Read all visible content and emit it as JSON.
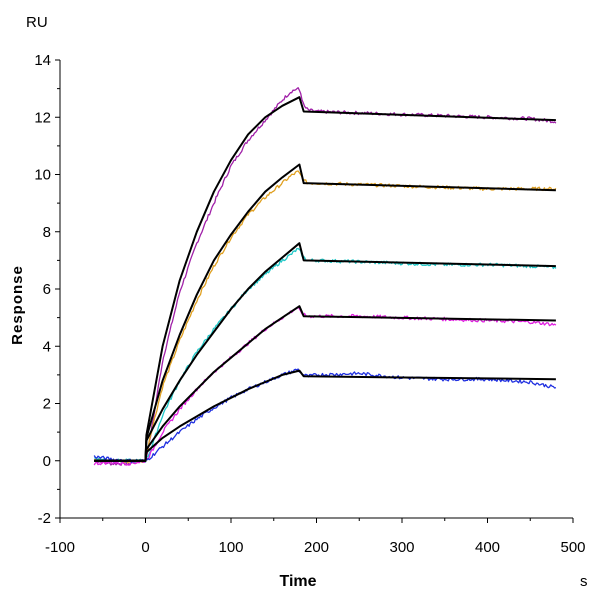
{
  "chart_data": {
    "type": "line",
    "title": "",
    "xlabel": "Time",
    "xunit": "s",
    "ylabel": "Response",
    "yunit": "RU",
    "xlim": [
      -100,
      500
    ],
    "ylim": [
      -2,
      14
    ],
    "xticks": [
      -100,
      0,
      100,
      200,
      300,
      400,
      500
    ],
    "yticks": [
      -2,
      0,
      2,
      4,
      6,
      8,
      10,
      12,
      14
    ],
    "grid": false,
    "legend": "none",
    "series": [
      {
        "role": "data",
        "color": "#a020a8",
        "x": [
          -60,
          -40,
          -20,
          0,
          5,
          20,
          40,
          60,
          80,
          100,
          120,
          140,
          160,
          170,
          178,
          181,
          185,
          190,
          200,
          250,
          300,
          350,
          400,
          450,
          480
        ],
        "y": [
          0,
          -0.1,
          -0.1,
          0,
          0.7,
          3.5,
          5.9,
          7.6,
          9.0,
          10.3,
          11.2,
          11.9,
          12.6,
          12.9,
          13.0,
          12.9,
          12.4,
          12.25,
          12.2,
          12.15,
          12.1,
          12.05,
          12.0,
          11.95,
          11.85
        ]
      },
      {
        "role": "data",
        "color": "#e0a020",
        "x": [
          -60,
          -40,
          -20,
          0,
          5,
          20,
          40,
          60,
          80,
          100,
          120,
          140,
          160,
          170,
          178,
          181,
          185,
          190,
          200,
          250,
          300,
          350,
          400,
          450,
          480
        ],
        "y": [
          0.05,
          0,
          -0.05,
          0,
          0.8,
          2.6,
          4.2,
          5.6,
          6.8,
          7.8,
          8.6,
          9.2,
          9.7,
          9.95,
          10.1,
          10.0,
          9.8,
          9.7,
          9.7,
          9.65,
          9.6,
          9.55,
          9.5,
          9.5,
          9.5
        ]
      },
      {
        "role": "data",
        "color": "#20c8c8",
        "x": [
          -60,
          -40,
          -20,
          0,
          5,
          20,
          40,
          60,
          80,
          100,
          120,
          140,
          160,
          170,
          178,
          181,
          185,
          190,
          200,
          250,
          300,
          350,
          400,
          450,
          480
        ],
        "y": [
          0.1,
          0,
          0,
          0,
          0.3,
          1.6,
          2.8,
          3.8,
          4.6,
          5.3,
          6.0,
          6.5,
          7.0,
          7.2,
          7.4,
          7.3,
          7.1,
          7.0,
          7.0,
          6.95,
          6.9,
          6.85,
          6.85,
          6.8,
          6.75
        ]
      },
      {
        "role": "data",
        "color": "#e020e0",
        "x": [
          -60,
          -40,
          -20,
          0,
          5,
          20,
          40,
          60,
          80,
          100,
          120,
          140,
          160,
          170,
          178,
          181,
          185,
          190,
          200,
          250,
          300,
          350,
          400,
          450,
          480
        ],
        "y": [
          -0.1,
          -0.05,
          -0.1,
          0,
          0.2,
          1.0,
          1.8,
          2.5,
          3.1,
          3.6,
          4.1,
          4.6,
          5.0,
          5.2,
          5.35,
          5.2,
          5.1,
          5.05,
          5.05,
          5.05,
          5.0,
          4.95,
          4.9,
          4.85,
          4.75
        ]
      },
      {
        "role": "data",
        "color": "#2030e0",
        "x": [
          -60,
          -40,
          -20,
          0,
          5,
          20,
          40,
          60,
          80,
          100,
          120,
          140,
          160,
          170,
          178,
          181,
          185,
          190,
          200,
          250,
          300,
          350,
          400,
          450,
          480
        ],
        "y": [
          0.15,
          0.05,
          0,
          0,
          0.1,
          0.5,
          1.0,
          1.45,
          1.85,
          2.2,
          2.5,
          2.75,
          3.0,
          3.1,
          3.2,
          3.1,
          3.0,
          2.95,
          3.0,
          3.05,
          2.9,
          2.85,
          2.85,
          2.75,
          2.55
        ]
      },
      {
        "role": "fit",
        "color": "#000000",
        "x": [
          -60,
          0,
          1,
          20,
          40,
          60,
          80,
          100,
          120,
          140,
          160,
          180,
          185,
          480
        ],
        "y": [
          0,
          0,
          0.9,
          4.0,
          6.3,
          8.0,
          9.4,
          10.5,
          11.4,
          12.0,
          12.4,
          12.7,
          12.2,
          11.9
        ]
      },
      {
        "role": "fit",
        "color": "#000000",
        "x": [
          -60,
          0,
          1,
          20,
          40,
          60,
          80,
          100,
          120,
          140,
          160,
          180,
          185,
          480
        ],
        "y": [
          0,
          0,
          0.8,
          2.8,
          4.4,
          5.8,
          7.0,
          7.9,
          8.7,
          9.4,
          9.9,
          10.35,
          9.7,
          9.45
        ]
      },
      {
        "role": "fit",
        "color": "#000000",
        "x": [
          -60,
          0,
          1,
          20,
          40,
          60,
          80,
          100,
          120,
          140,
          160,
          180,
          185,
          480
        ],
        "y": [
          0,
          0,
          0.7,
          1.8,
          2.8,
          3.7,
          4.5,
          5.3,
          6.0,
          6.6,
          7.1,
          7.6,
          7.0,
          6.8
        ]
      },
      {
        "role": "fit",
        "color": "#000000",
        "x": [
          -60,
          0,
          1,
          20,
          40,
          60,
          80,
          100,
          120,
          140,
          160,
          180,
          185,
          480
        ],
        "y": [
          0,
          0,
          0.4,
          1.2,
          1.9,
          2.5,
          3.1,
          3.6,
          4.1,
          4.6,
          5.0,
          5.4,
          5.05,
          4.9
        ]
      },
      {
        "role": "fit",
        "color": "#000000",
        "x": [
          -60,
          0,
          1,
          20,
          40,
          60,
          80,
          100,
          120,
          140,
          160,
          180,
          185,
          480
        ],
        "y": [
          0,
          0,
          0.3,
          0.8,
          1.2,
          1.55,
          1.9,
          2.2,
          2.5,
          2.75,
          3.0,
          3.15,
          2.95,
          2.85
        ]
      }
    ]
  }
}
